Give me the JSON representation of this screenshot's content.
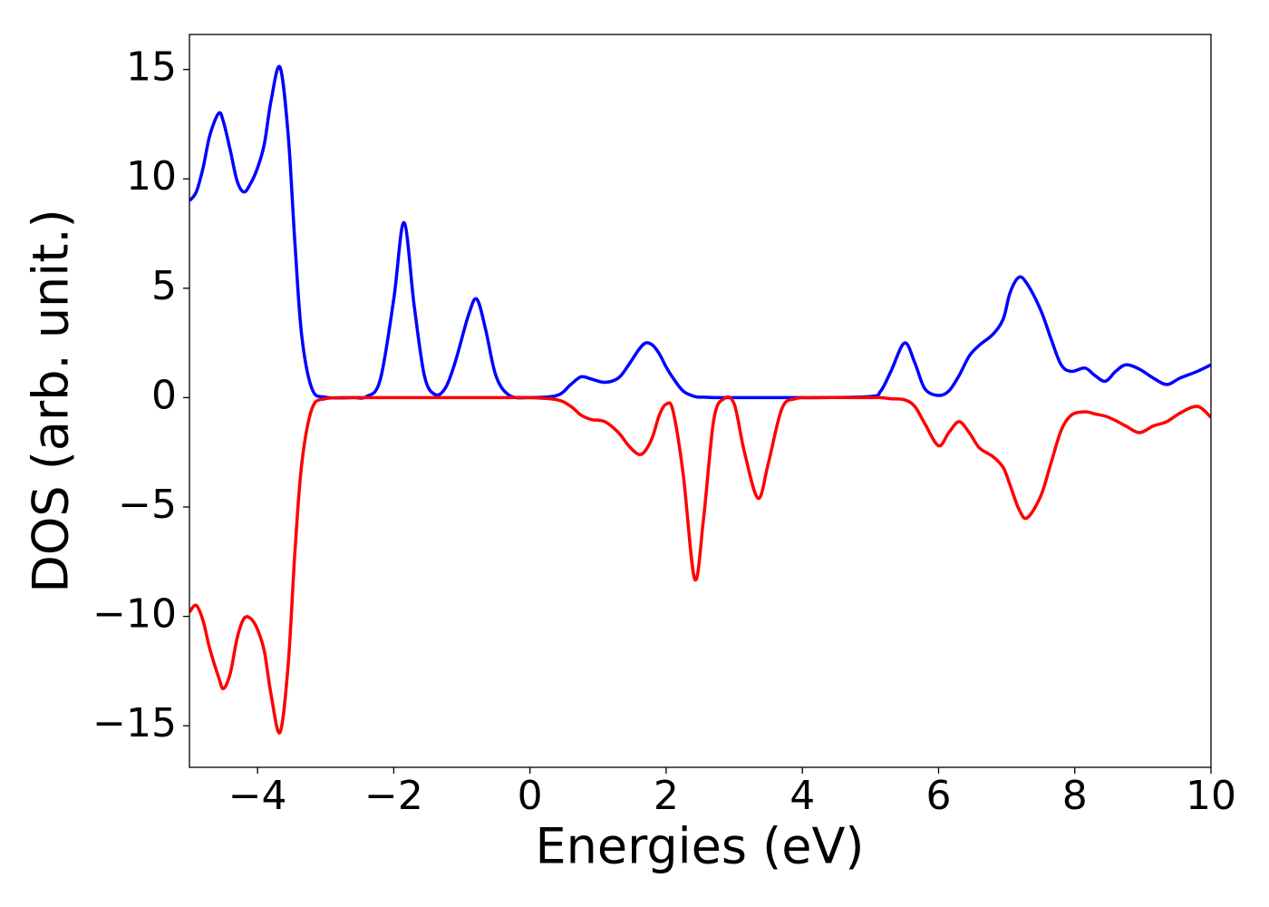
{
  "chart_data": {
    "type": "line",
    "x_label": "Energies (eV)",
    "y_label": "DOS (arb. unit.)",
    "x": [
      -5,
      -4.9,
      -4.8,
      -4.7,
      -4.57,
      -4.5,
      -4.4,
      -4.3,
      -4.2,
      -4.1,
      -4.0,
      -3.9,
      -3.8,
      -3.67,
      -3.55,
      -3.45,
      -3.35,
      -3.2,
      -3.0,
      -2.6,
      -2.4,
      -2.2,
      -2.0,
      -1.85,
      -1.7,
      -1.55,
      -1.4,
      -1.25,
      -1.1,
      -0.9,
      -0.78,
      -0.65,
      -0.5,
      -0.3,
      0,
      0.4,
      0.6,
      0.75,
      0.9,
      1.1,
      1.3,
      1.45,
      1.6,
      1.7,
      1.8,
      1.9,
      2.0,
      2.1,
      2.25,
      2.42,
      2.55,
      2.7,
      2.85,
      3.0,
      3.15,
      3.35,
      3.5,
      3.7,
      3.9,
      4.2,
      5.0,
      5.15,
      5.3,
      5.5,
      5.65,
      5.8,
      6.0,
      6.15,
      6.3,
      6.45,
      6.6,
      6.8,
      6.95,
      7.05,
      7.18,
      7.3,
      7.5,
      7.65,
      7.8,
      7.95,
      8.15,
      8.3,
      8.45,
      8.6,
      8.75,
      8.95,
      9.15,
      9.35,
      9.55,
      9.8,
      10
    ],
    "series": [
      {
        "color": "#0000ff",
        "values": [
          9,
          9.4,
          10.5,
          12,
          13,
          12.6,
          11.3,
          9.9,
          9.4,
          9.8,
          10.5,
          11.6,
          13.6,
          15.1,
          12,
          7,
          2.8,
          0.4,
          0.02,
          0,
          0.05,
          0.8,
          4.5,
          8,
          4.2,
          1,
          0.15,
          0.4,
          1.6,
          3.8,
          4.5,
          3.1,
          1,
          0.1,
          0,
          0.1,
          0.6,
          0.95,
          0.85,
          0.7,
          0.9,
          1.5,
          2.2,
          2.5,
          2.4,
          2.0,
          1.4,
          0.9,
          0.3,
          0.05,
          0.02,
          0,
          0,
          0,
          0,
          0,
          0,
          0,
          0,
          0,
          0.05,
          0.3,
          1.2,
          2.5,
          1.6,
          0.4,
          0.1,
          0.3,
          1.0,
          1.9,
          2.4,
          2.9,
          3.6,
          4.8,
          5.5,
          5.2,
          4,
          2.7,
          1.5,
          1.2,
          1.35,
          1.0,
          0.75,
          1.2,
          1.5,
          1.3,
          0.9,
          0.6,
          0.9,
          1.2,
          1.5
        ]
      },
      {
        "color": "#ff0000",
        "values": [
          -9.8,
          -9.5,
          -10.2,
          -11.5,
          -12.8,
          -13.3,
          -12.6,
          -11,
          -10.1,
          -10.1,
          -10.6,
          -11.6,
          -13.6,
          -15.3,
          -12.2,
          -7,
          -3,
          -0.5,
          -0.05,
          0,
          0,
          0,
          0,
          0,
          0,
          0,
          0,
          0,
          0,
          0,
          0,
          0,
          0,
          0,
          0,
          -0.1,
          -0.4,
          -0.8,
          -1,
          -1.1,
          -1.6,
          -2.2,
          -2.6,
          -2.4,
          -1.8,
          -0.8,
          -0.3,
          -0.6,
          -3.5,
          -8.3,
          -5.5,
          -1,
          -0.05,
          -0.3,
          -2.5,
          -4.6,
          -3,
          -0.5,
          -0.05,
          0,
          0,
          0,
          -0.05,
          -0.1,
          -0.4,
          -1.2,
          -2.2,
          -1.6,
          -1.1,
          -1.6,
          -2.3,
          -2.7,
          -3.2,
          -4,
          -5.1,
          -5.5,
          -4.5,
          -3,
          -1.5,
          -0.8,
          -0.65,
          -0.75,
          -0.85,
          -1.05,
          -1.3,
          -1.6,
          -1.3,
          -1.1,
          -0.7,
          -0.4,
          -0.9
        ]
      }
    ],
    "xlim": [
      -5,
      10
    ],
    "ylim": [
      -16.9,
      16.6
    ],
    "xticks": [
      {
        "value": -4,
        "label": "−4"
      },
      {
        "value": -2,
        "label": "−2"
      },
      0,
      2,
      4,
      6,
      8,
      10
    ],
    "yticks": [
      {
        "value": -15,
        "label": "−15"
      },
      {
        "value": -10,
        "label": "−10"
      },
      {
        "value": -5,
        "label": "−5"
      },
      0,
      5,
      10,
      15
    ],
    "grid": false
  }
}
